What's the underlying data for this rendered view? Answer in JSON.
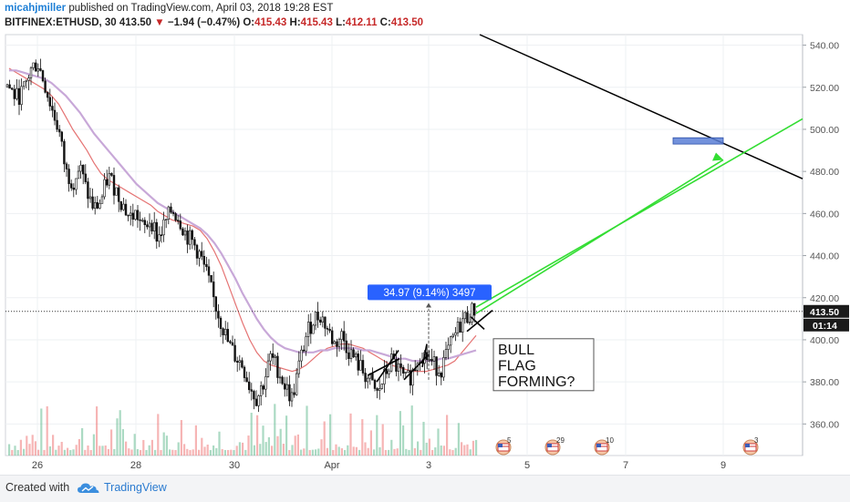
{
  "header": {
    "author": "micahjmiller",
    "published_text": "published on TradingView.com, April 03, 2018 19:28 EST",
    "symbol": "BITFINEX:ETHUSD, 30",
    "last": "413.50",
    "change_arrow": "▼",
    "change": "−1.94 (−0.47%)",
    "o_label": "O:",
    "o": "415.43",
    "h_label": "H:",
    "h": "415.43",
    "l_label": "L:",
    "l": "412.11",
    "c_label": "C:",
    "c": "413.50"
  },
  "footer": {
    "created_with": "Created with",
    "brand": "TradingView"
  },
  "chart_data": {
    "type": "candlestick",
    "title": "BITFINEX:ETHUSD, 30",
    "x_ticks": [
      "26",
      "28",
      "30",
      "Apr",
      "3",
      "5",
      "7",
      "9"
    ],
    "y_ticks": [
      360,
      380,
      400,
      420,
      440,
      460,
      480,
      500,
      520,
      540
    ],
    "ylim": [
      345,
      545
    ],
    "last_price": 413.5,
    "countdown": "01:14",
    "series": [
      {
        "name": "ETHUSD close (approx.)",
        "role": "price",
        "values": [
          520,
          515,
          518,
          528,
          532,
          522,
          510,
          500,
          480,
          475,
          482,
          470,
          462,
          466,
          478,
          472,
          465,
          458,
          460,
          452,
          458,
          448,
          455,
          462,
          458,
          450,
          446,
          440,
          430,
          418,
          408,
          398,
          392,
          388,
          378,
          372,
          380,
          392,
          386,
          378,
          372,
          388,
          402,
          410,
          412,
          405,
          398,
          402,
          395,
          390,
          385,
          380,
          374,
          382,
          390,
          386,
          380,
          384,
          394,
          392,
          388,
          386,
          394,
          402,
          409,
          412,
          415
        ]
      },
      {
        "name": "short moving average",
        "role": "ma",
        "color": "#e57373",
        "values": [
          529,
          527,
          525,
          523,
          521,
          519,
          516,
          512,
          506,
          500,
          495,
          490,
          484,
          479,
          476,
          474,
          472,
          470,
          468,
          466,
          464,
          461,
          459,
          457,
          456,
          455,
          454,
          452,
          448,
          442,
          435,
          426,
          417,
          408,
          400,
          394,
          390,
          388,
          387,
          386,
          385,
          386,
          388,
          391,
          394,
          396,
          397,
          398,
          398,
          397,
          396,
          394,
          392,
          390,
          388,
          387,
          386,
          385,
          385,
          385,
          386,
          387,
          388,
          390,
          394,
          398,
          402
        ]
      },
      {
        "name": "long moving average",
        "role": "ma",
        "color": "#c8a8d8",
        "values": [
          528,
          528,
          527,
          526,
          525,
          524,
          522,
          519,
          516,
          512,
          508,
          503,
          498,
          494,
          490,
          486,
          482,
          478,
          474,
          471,
          468,
          465,
          463,
          461,
          459,
          457,
          455,
          453,
          450,
          446,
          441,
          435,
          429,
          422,
          416,
          410,
          405,
          401,
          398,
          396,
          395,
          394,
          394,
          394,
          395,
          395,
          396,
          396,
          396,
          396,
          395,
          395,
          394,
          393,
          392,
          391,
          391,
          390,
          390,
          390,
          390,
          391,
          391,
          392,
          393,
          394,
          395
        ]
      }
    ],
    "annotations": {
      "measure_label": "34.97 (9.14%) 3497",
      "note_lines": [
        "BULL",
        "FLAG",
        "FORMING?"
      ],
      "upper_trendline_color": "#000000",
      "projection_color": "#33dd33",
      "target_zone_color": "#5b7fd6"
    },
    "event_badges": [
      "5",
      "29",
      "10",
      "3"
    ]
  }
}
